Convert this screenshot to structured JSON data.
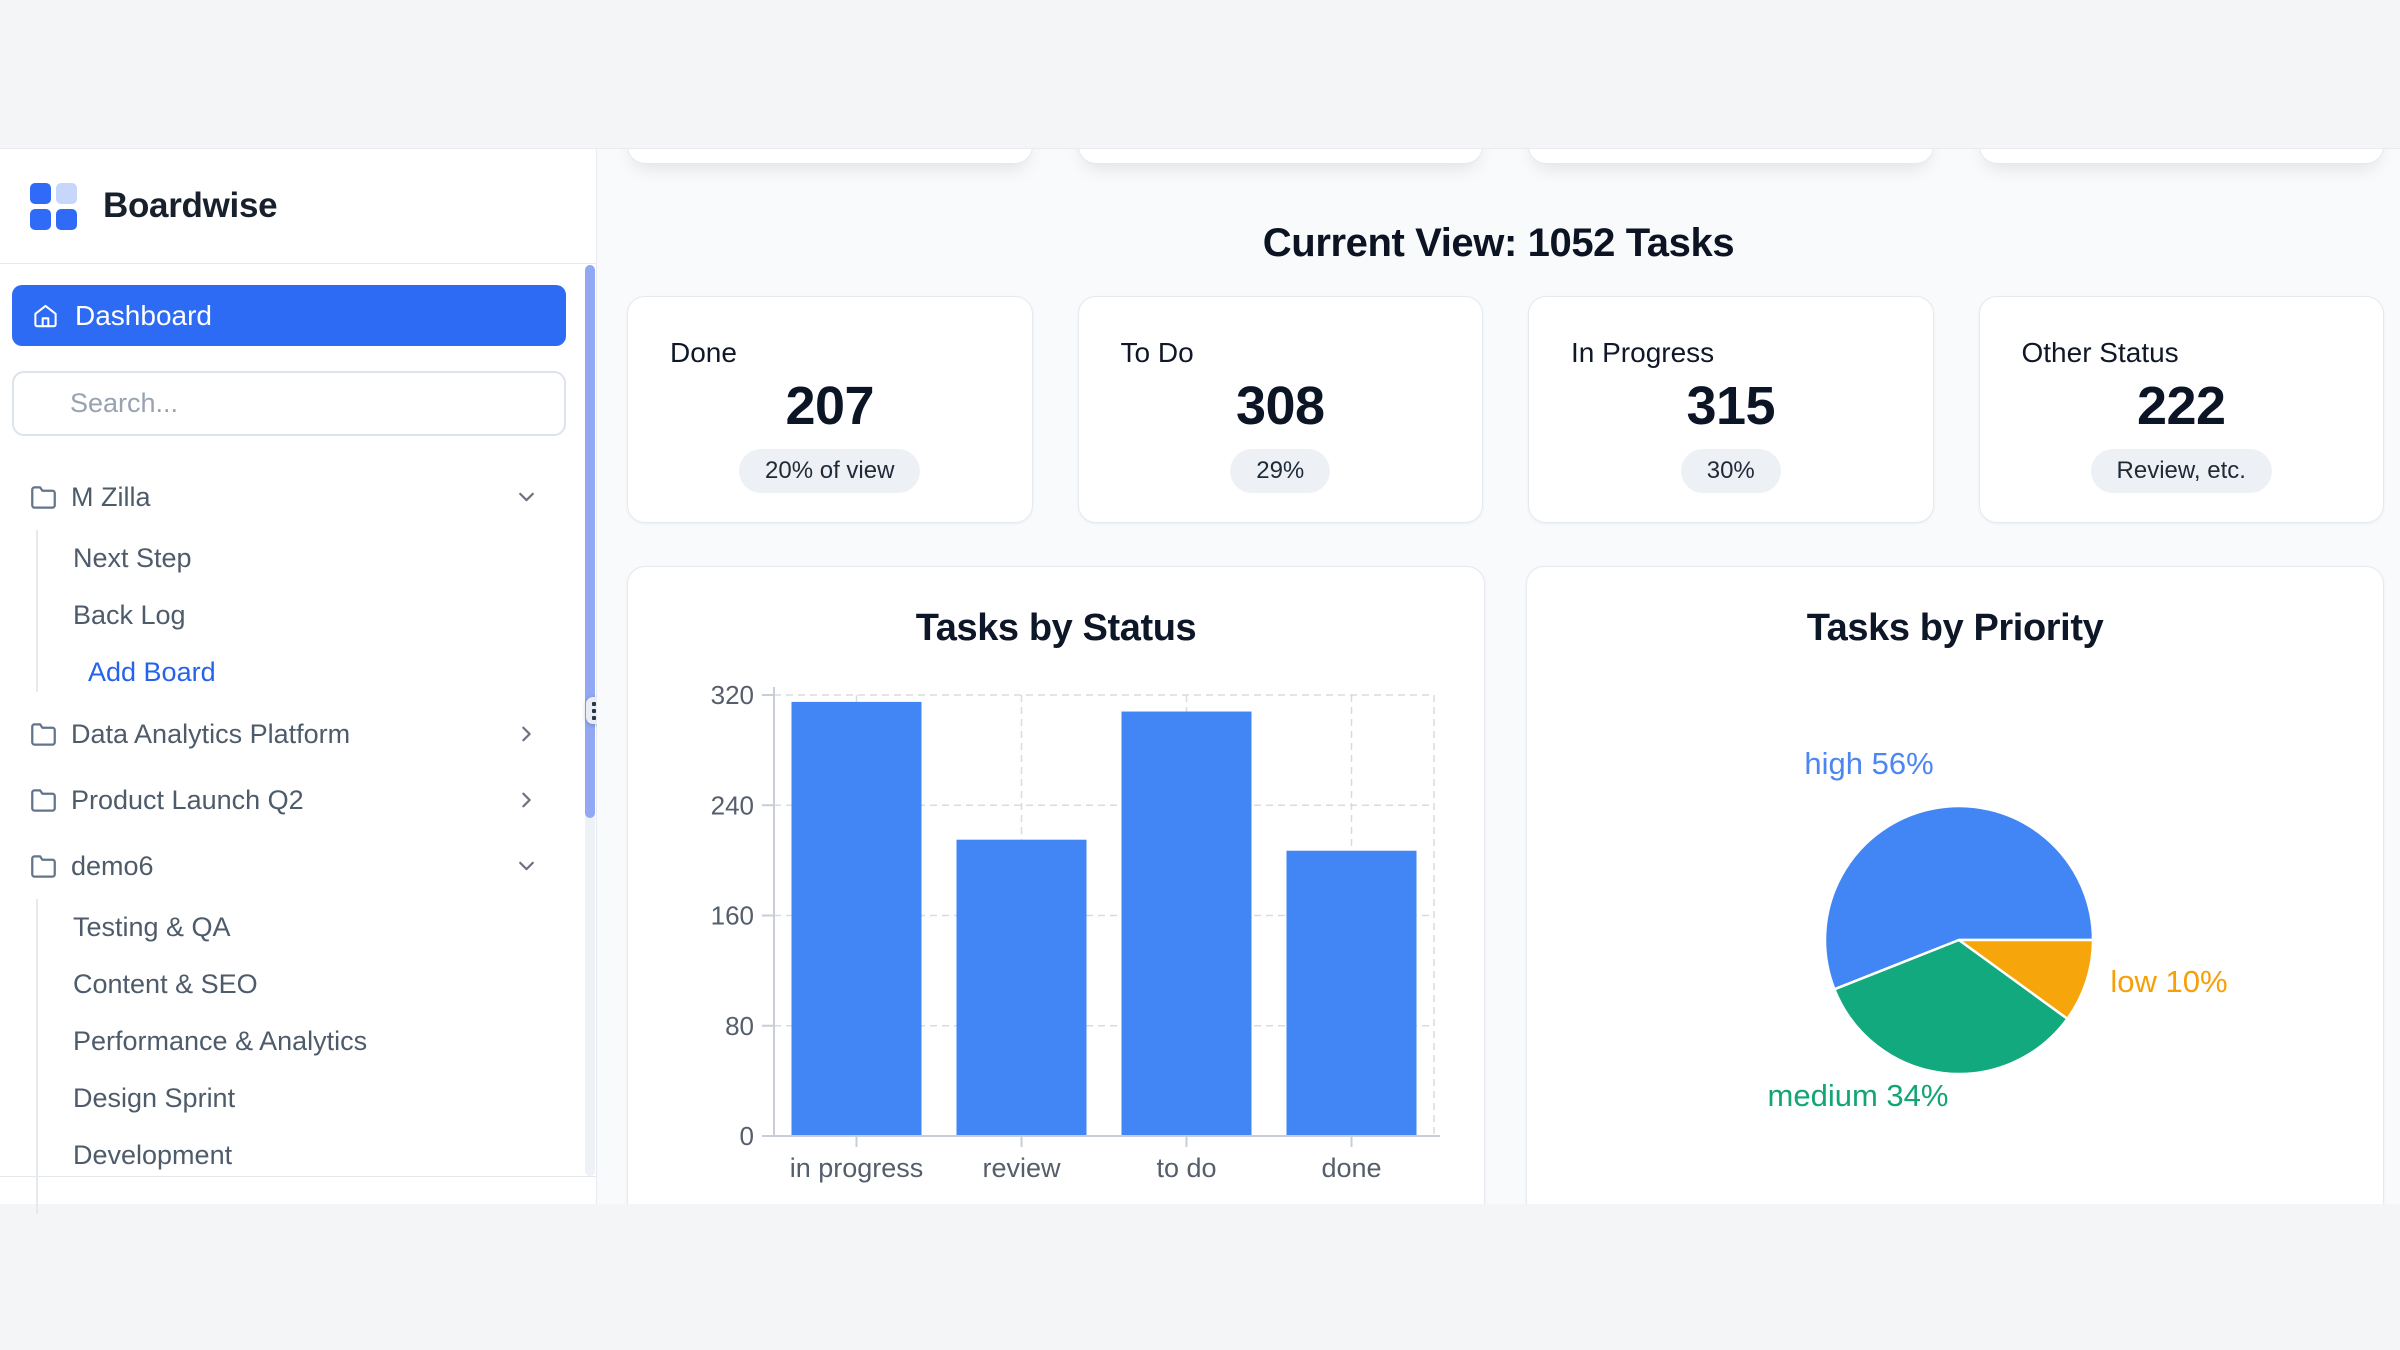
{
  "sidebar": {
    "brand": "Boardwise",
    "dashboard_label": "Dashboard",
    "search_placeholder": "Search...",
    "accent_color": "#2e6bf4",
    "tree": [
      {
        "label": "M Zilla",
        "kind": "board",
        "chevron": "down",
        "children": [
          {
            "label": "Next Step"
          },
          {
            "label": "Back Log"
          },
          {
            "label": "Add Board",
            "accent": true,
            "extra_indent": true
          }
        ]
      },
      {
        "label": "Data Analytics Platform",
        "kind": "board",
        "chevron": "right",
        "children": []
      },
      {
        "label": "Product Launch Q2",
        "kind": "board",
        "chevron": "right",
        "children": []
      },
      {
        "label": "demo6",
        "kind": "board",
        "chevron": "down",
        "children": [
          {
            "label": "Testing & QA"
          },
          {
            "label": "Content & SEO"
          },
          {
            "label": "Performance & Analytics"
          },
          {
            "label": "Design Sprint"
          },
          {
            "label": "Development"
          }
        ]
      }
    ]
  },
  "main": {
    "heading": "Current View: 1052 Tasks",
    "stats": [
      {
        "label": "Done",
        "value": "207",
        "badge": "20% of view"
      },
      {
        "label": "To Do",
        "value": "308",
        "badge": "29%"
      },
      {
        "label": "In Progress",
        "value": "315",
        "badge": "30%"
      },
      {
        "label": "Other Status",
        "value": "222",
        "badge": "Review, etc."
      }
    ]
  },
  "chart_data": [
    {
      "type": "bar",
      "title": "Tasks by Status",
      "categories": [
        "in progress",
        "review",
        "to do",
        "done"
      ],
      "values": [
        315,
        215,
        308,
        207
      ],
      "xlabel": "",
      "ylabel": "",
      "ylim": [
        0,
        320
      ],
      "yticks": [
        0,
        80,
        160,
        240,
        320
      ],
      "grid": "dashed",
      "bar_color": "#4285f4",
      "axis_color": "#c9ced6",
      "tick_label_color": "#555e6b"
    },
    {
      "type": "pie",
      "title": "Tasks by Priority",
      "slices": [
        {
          "name": "high",
          "percent": 56,
          "color": "#4285f4",
          "label": "high 56%",
          "label_color": "#4d86f0"
        },
        {
          "name": "medium",
          "percent": 34,
          "color": "#12a97e",
          "label": "medium 34%",
          "label_color": "#11a674"
        },
        {
          "name": "low",
          "percent": 10,
          "color": "#f6a50b",
          "label": "low 10%",
          "label_color": "#f6a009"
        }
      ],
      "start_angle_deg_from_east": 0,
      "direction": "counterclockwise",
      "legend_position": "around-pie"
    }
  ]
}
